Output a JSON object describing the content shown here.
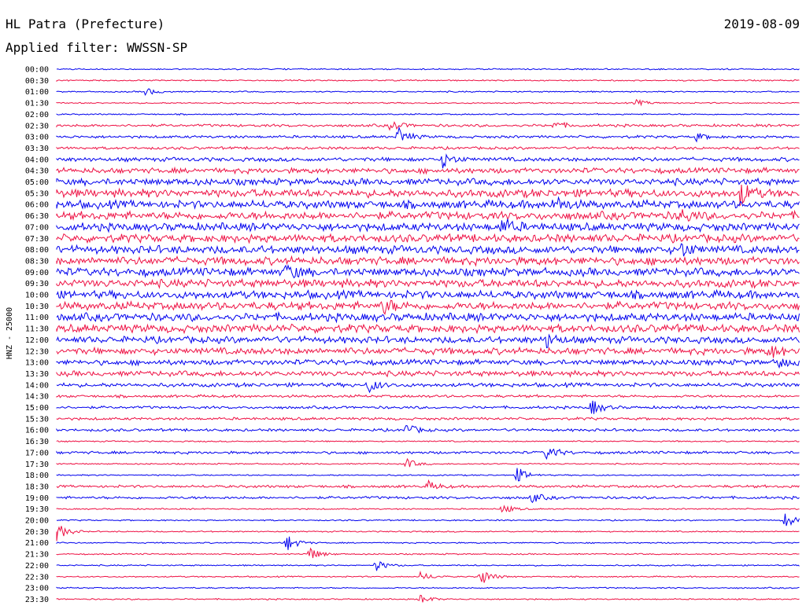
{
  "header": {
    "station": "HL Patra (Prefecture)",
    "date": "2019-08-09",
    "filter": "Applied filter: WWSSN-SP"
  },
  "chart_data": {
    "type": "line",
    "title": "HL Patra (Prefecture)",
    "subtitle": "Applied filter: WWSSN-SP",
    "ylabel": "HNZ - 25000",
    "colors": [
      "#0000ee",
      "#ee1144"
    ],
    "row_labels": [
      "00:00",
      "00:30",
      "01:00",
      "01:30",
      "02:00",
      "02:30",
      "03:00",
      "03:30",
      "04:00",
      "04:30",
      "05:00",
      "05:30",
      "06:00",
      "06:30",
      "07:00",
      "07:30",
      "08:00",
      "08:30",
      "09:00",
      "09:30",
      "10:00",
      "10:30",
      "11:00",
      "11:30",
      "12:00",
      "12:30",
      "13:00",
      "13:30",
      "14:00",
      "14:30",
      "15:00",
      "15:30",
      "16:00",
      "16:30",
      "17:00",
      "17:30",
      "18:00",
      "18:30",
      "19:00",
      "19:30",
      "20:00",
      "20:30",
      "21:00",
      "21:30",
      "22:00",
      "22:30",
      "23:00",
      "23:30"
    ],
    "noise_level": [
      1,
      1,
      1,
      1,
      1,
      2,
      2,
      2,
      3,
      4,
      5,
      6,
      6,
      6,
      6,
      6,
      6,
      6,
      6,
      6,
      6,
      6,
      6,
      6,
      5,
      5,
      4,
      4,
      3,
      2,
      2,
      2,
      2,
      1,
      2,
      1,
      1,
      2,
      2,
      1,
      1,
      1,
      1,
      1,
      1,
      1,
      1,
      1
    ],
    "events": [
      {
        "row": 2,
        "t": 0.12,
        "amp": 5
      },
      {
        "row": 3,
        "t": 0.78,
        "amp": 4
      },
      {
        "row": 5,
        "t": 0.45,
        "amp": 7
      },
      {
        "row": 5,
        "t": 0.67,
        "amp": 5
      },
      {
        "row": 6,
        "t": 0.46,
        "amp": 12
      },
      {
        "row": 6,
        "t": 0.86,
        "amp": 5
      },
      {
        "row": 8,
        "t": 0.52,
        "amp": 10
      },
      {
        "row": 11,
        "t": 0.92,
        "amp": 14
      },
      {
        "row": 12,
        "t": 0.67,
        "amp": 10
      },
      {
        "row": 13,
        "t": 0.84,
        "amp": 8
      },
      {
        "row": 14,
        "t": 0.6,
        "amp": 10
      },
      {
        "row": 16,
        "t": 0.84,
        "amp": 9
      },
      {
        "row": 18,
        "t": 0.31,
        "amp": 10
      },
      {
        "row": 21,
        "t": 0.44,
        "amp": 9
      },
      {
        "row": 24,
        "t": 0.66,
        "amp": 9
      },
      {
        "row": 25,
        "t": 0.96,
        "amp": 8
      },
      {
        "row": 26,
        "t": 0.97,
        "amp": 8
      },
      {
        "row": 28,
        "t": 0.42,
        "amp": 9
      },
      {
        "row": 30,
        "t": 0.72,
        "amp": 10
      },
      {
        "row": 32,
        "t": 0.47,
        "amp": 8
      },
      {
        "row": 34,
        "t": 0.66,
        "amp": 10
      },
      {
        "row": 35,
        "t": 0.47,
        "amp": 7
      },
      {
        "row": 36,
        "t": 0.62,
        "amp": 10
      },
      {
        "row": 37,
        "t": 0.5,
        "amp": 6
      },
      {
        "row": 38,
        "t": 0.64,
        "amp": 6
      },
      {
        "row": 39,
        "t": 0.6,
        "amp": 6
      },
      {
        "row": 40,
        "t": 0.98,
        "amp": 10
      },
      {
        "row": 41,
        "t": 0.0,
        "amp": 12
      },
      {
        "row": 42,
        "t": 0.31,
        "amp": 11
      },
      {
        "row": 43,
        "t": 0.34,
        "amp": 9
      },
      {
        "row": 44,
        "t": 0.43,
        "amp": 7
      },
      {
        "row": 45,
        "t": 0.57,
        "amp": 12
      },
      {
        "row": 45,
        "t": 0.49,
        "amp": 6
      },
      {
        "row": 47,
        "t": 0.49,
        "amp": 6
      }
    ]
  }
}
